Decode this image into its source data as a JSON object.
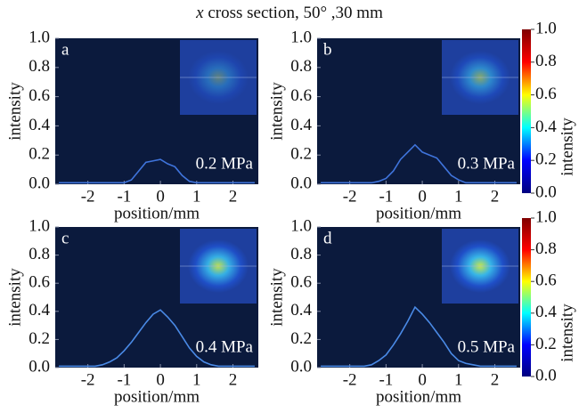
{
  "title_var": "x",
  "title": "cross section, 50° ,30 mm",
  "chart_data": [
    {
      "type": "line",
      "label": "a",
      "annotation": "0.2 MPa",
      "xlabel": "position/mm",
      "ylabel": "intensity",
      "background": "#0b1a3d",
      "x": [
        -2.8,
        -2.6,
        -2.4,
        -2.2,
        -2.0,
        -1.8,
        -1.6,
        -1.4,
        -1.2,
        -1.0,
        -0.8,
        -0.6,
        -0.4,
        -0.2,
        0,
        0.2,
        0.4,
        0.6,
        0.8,
        1.0,
        1.2,
        1.4,
        1.6,
        1.8,
        2.0,
        2.2,
        2.4,
        2.6
      ],
      "series": [
        {
          "color": "#3f74dc",
          "values": [
            0.01,
            0.01,
            0.01,
            0.01,
            0.01,
            0.01,
            0.01,
            0.01,
            0.01,
            0.01,
            0.03,
            0.09,
            0.15,
            0.16,
            0.17,
            0.14,
            0.12,
            0.06,
            0.02,
            0.01,
            0.01,
            0.01,
            0.01,
            0.01,
            0.01,
            0.01,
            0.01,
            0.01
          ]
        }
      ],
      "xlim": [
        -2.9,
        2.7
      ],
      "xticks": [
        -2,
        -1,
        0,
        1,
        2
      ],
      "ylim": [
        0,
        1
      ],
      "yticks": [
        {
          "value": 0,
          "label": "0.0"
        },
        0.2,
        0.4,
        0.6,
        0.8,
        {
          "value": 1,
          "label": "1.0"
        }
      ]
    },
    {
      "type": "line",
      "label": "b",
      "annotation": "0.3 MPa",
      "xlabel": "position/mm",
      "ylabel": "intensity",
      "background": "#0b1a3d",
      "x": [
        -2.8,
        -2.6,
        -2.4,
        -2.2,
        -2.0,
        -1.8,
        -1.6,
        -1.4,
        -1.2,
        -1.0,
        -0.8,
        -0.6,
        -0.4,
        -0.2,
        0,
        0.2,
        0.4,
        0.6,
        0.8,
        1.0,
        1.2,
        1.4,
        1.6,
        1.8,
        2.0,
        2.2,
        2.4,
        2.6
      ],
      "series": [
        {
          "color": "#3f74dc",
          "values": [
            0.01,
            0.01,
            0.01,
            0.01,
            0.01,
            0.01,
            0.01,
            0.01,
            0.02,
            0.04,
            0.09,
            0.17,
            0.22,
            0.27,
            0.22,
            0.2,
            0.18,
            0.12,
            0.06,
            0.03,
            0.01,
            0.01,
            0.01,
            0.01,
            0.01,
            0.01,
            0.01,
            0.01
          ]
        }
      ],
      "xlim": [
        -2.9,
        2.7
      ],
      "xticks": [
        -2,
        -1,
        0,
        1,
        2
      ],
      "ylim": [
        0,
        1
      ],
      "yticks": [
        {
          "value": 0,
          "label": "0.0"
        },
        0.2,
        0.4,
        0.6,
        0.8,
        {
          "value": 1,
          "label": "1.0"
        }
      ],
      "colorbar": {
        "label": "intensity",
        "colormap": "jet",
        "lim": [
          0,
          1
        ],
        "ticks": [
          {
            "value": 0,
            "label": "0.0"
          },
          0.2,
          0.4,
          0.6,
          0.8,
          {
            "value": 1,
            "label": "1.0"
          }
        ]
      }
    },
    {
      "type": "line",
      "label": "c",
      "annotation": "0.4 MPa",
      "xlabel": "position/mm",
      "ylabel": "intensity",
      "background": "#0b1a3d",
      "x": [
        -2.8,
        -2.6,
        -2.4,
        -2.2,
        -2.0,
        -1.8,
        -1.6,
        -1.4,
        -1.2,
        -1.0,
        -0.8,
        -0.6,
        -0.4,
        -0.2,
        0,
        0.2,
        0.4,
        0.6,
        0.8,
        1.0,
        1.2,
        1.4,
        1.6,
        1.8,
        2.0,
        2.2,
        2.4,
        2.6
      ],
      "series": [
        {
          "color": "#4a8ae6",
          "values": [
            0.01,
            0.01,
            0.01,
            0.01,
            0.01,
            0.01,
            0.02,
            0.04,
            0.07,
            0.12,
            0.18,
            0.25,
            0.32,
            0.38,
            0.41,
            0.36,
            0.3,
            0.22,
            0.14,
            0.08,
            0.04,
            0.02,
            0.01,
            0.01,
            0.01,
            0.01,
            0.01,
            0.01
          ]
        }
      ],
      "xlim": [
        -2.9,
        2.7
      ],
      "xticks": [
        -2,
        -1,
        0,
        1,
        2
      ],
      "ylim": [
        0,
        1
      ],
      "yticks": [
        {
          "value": 0,
          "label": "0.0"
        },
        0.2,
        0.4,
        0.6,
        0.8,
        {
          "value": 1,
          "label": "1.0"
        }
      ]
    },
    {
      "type": "line",
      "label": "d",
      "annotation": "0.5 MPa",
      "xlabel": "position/mm",
      "ylabel": "intensity",
      "background": "#0b1a3d",
      "x": [
        -2.8,
        -2.6,
        -2.4,
        -2.2,
        -2.0,
        -1.8,
        -1.6,
        -1.4,
        -1.2,
        -1.0,
        -0.8,
        -0.6,
        -0.4,
        -0.2,
        0,
        0.2,
        0.4,
        0.6,
        0.8,
        1.0,
        1.2,
        1.4,
        1.6,
        1.8,
        2.0,
        2.2,
        2.4,
        2.6
      ],
      "series": [
        {
          "color": "#4a8ae6",
          "values": [
            0.01,
            0.01,
            0.01,
            0.01,
            0.01,
            0.01,
            0.01,
            0.02,
            0.05,
            0.09,
            0.16,
            0.24,
            0.33,
            0.43,
            0.38,
            0.32,
            0.25,
            0.18,
            0.1,
            0.05,
            0.03,
            0.02,
            0.01,
            0.01,
            0.01,
            0.01,
            0.01,
            0.01
          ]
        }
      ],
      "xlim": [
        -2.9,
        2.7
      ],
      "xticks": [
        -2,
        -1,
        0,
        1,
        2
      ],
      "ylim": [
        0,
        1
      ],
      "yticks": [
        {
          "value": 0,
          "label": "0.0"
        },
        0.2,
        0.4,
        0.6,
        0.8,
        {
          "value": 1,
          "label": "1.0"
        }
      ],
      "colorbar": {
        "label": "intensity",
        "colormap": "jet",
        "lim": [
          0,
          1
        ],
        "ticks": [
          {
            "value": 0,
            "label": "0.0"
          },
          0.2,
          0.4,
          0.6,
          0.8,
          {
            "value": 1,
            "label": "1.0"
          }
        ]
      }
    }
  ]
}
